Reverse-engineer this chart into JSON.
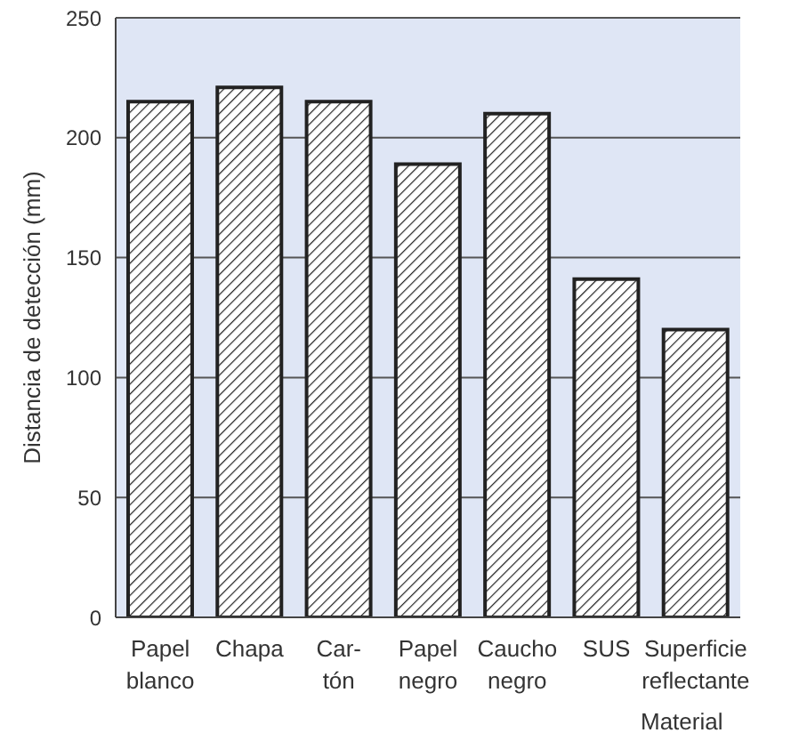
{
  "chart_data": {
    "type": "bar",
    "xlabel": "Material",
    "ylabel": "Distancia de detección (mm)",
    "categories": [
      "Papel\nblanco",
      "Chapa",
      "Car-\ntón",
      "Papel\nnegro",
      "Caucho\nnegro",
      "SUS",
      "Superficie\nreflectante"
    ],
    "values": [
      215,
      221,
      215,
      189,
      210,
      141,
      120
    ],
    "color": "#222222",
    "ylim": [
      0,
      250
    ],
    "yticks": [
      0,
      50,
      100,
      150,
      200,
      250
    ],
    "grid": "y"
  }
}
